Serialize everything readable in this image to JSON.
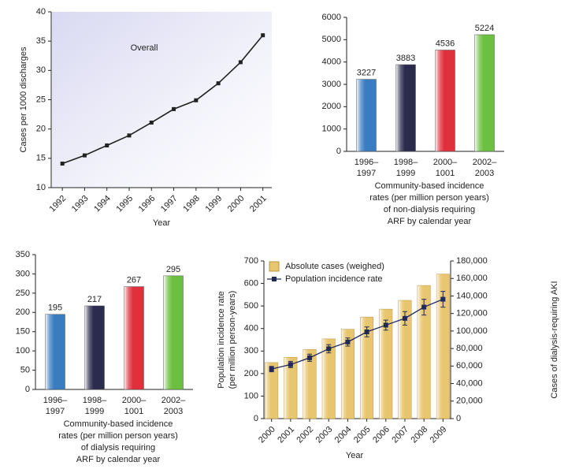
{
  "chart_data": [
    {
      "type": "line",
      "annotation": "Overall",
      "ylabel": "Cases per 1000 discharges",
      "xlabel": "Year",
      "x": [
        1992,
        1993,
        1994,
        1995,
        1996,
        1997,
        1998,
        1999,
        2000,
        2001
      ],
      "values": [
        14.1,
        15.5,
        17.2,
        18.9,
        21.1,
        23.4,
        24.9,
        27.8,
        31.4,
        36.0
      ],
      "color": "#222222",
      "xlim": [
        1991.5,
        2001.4
      ],
      "xticks": [
        1992,
        1993,
        1994,
        1995,
        1996,
        1997,
        1998,
        1999,
        2000,
        2001
      ],
      "ylim": [
        10,
        40
      ],
      "yticks": [
        10,
        15,
        20,
        25,
        30,
        35,
        40
      ]
    },
    {
      "type": "bar",
      "categories": [
        [
          "1996–",
          "1997"
        ],
        [
          "1998–",
          "1999"
        ],
        [
          "2000–",
          "1001"
        ],
        [
          "2002–",
          "2003"
        ]
      ],
      "values": [
        3227,
        3883,
        4536,
        5224
      ],
      "colors": [
        "#3a7cc0",
        "#2b2b4e",
        "#e0303c",
        "#6cc040"
      ],
      "caption": [
        "Community-based incidence",
        "rates (per million person years)",
        "of non-dialysis requiring",
        "ARF by calendar year"
      ],
      "ylim": [
        0,
        6000
      ],
      "yticks": [
        0,
        1000,
        2000,
        3000,
        4000,
        5000,
        6000
      ]
    },
    {
      "type": "bar",
      "categories": [
        [
          "1996–",
          "1997"
        ],
        [
          "1998–",
          "1999"
        ],
        [
          "2000–",
          "1001"
        ],
        [
          "2002–",
          "2003"
        ]
      ],
      "values": [
        195,
        217,
        267,
        295
      ],
      "colors": [
        "#3a7cc0",
        "#2b2b4e",
        "#e0303c",
        "#6cc040"
      ],
      "caption": [
        "Community-based incidence",
        "rates (per million person years)",
        "of dialysis requiring",
        "ARF by calendar year"
      ],
      "ylim": [
        0,
        350
      ],
      "yticks": [
        0,
        50,
        100,
        150,
        200,
        250,
        300,
        350
      ]
    },
    {
      "type": "combo",
      "xlabel": "Year",
      "ylabel": [
        "Population incidence rate",
        "(per million person-years)"
      ],
      "y2label": "Cases of dialysis-requiring AKI",
      "x": [
        2000,
        2001,
        2002,
        2003,
        2004,
        2005,
        2006,
        2007,
        2008,
        2009
      ],
      "series": [
        {
          "name": "Absolute cases (weighed)",
          "kind": "bar",
          "axis": "y2",
          "color": "#e8c670",
          "values": [
            64000,
            70000,
            79000,
            91000,
            102000,
            116000,
            125000,
            135000,
            152000,
            165000
          ]
        },
        {
          "name": "Population incidence rate",
          "kind": "line",
          "color": "#1f2a5a",
          "values": [
            220,
            240,
            270,
            310,
            340,
            385,
            415,
            445,
            495,
            530
          ],
          "errors": [
            12,
            14,
            16,
            18,
            18,
            22,
            22,
            30,
            35,
            35
          ]
        }
      ],
      "xlim": [
        1999.6,
        2009.4
      ],
      "xticks": [
        2000,
        2001,
        2002,
        2003,
        2004,
        2005,
        2006,
        2007,
        2008,
        2009
      ],
      "ylim": [
        0,
        700
      ],
      "yticks": [
        0,
        100,
        200,
        300,
        400,
        500,
        600,
        700
      ],
      "y2lim": [
        0,
        180000
      ],
      "y2ticks": [
        0,
        {
          "value": 20000,
          "label": "20,000"
        },
        {
          "value": 40000,
          "label": "40,000"
        },
        {
          "value": 60000,
          "label": "60,000"
        },
        {
          "value": 80000,
          "label": "80,000"
        },
        {
          "value": 100000,
          "label": "100,000"
        },
        {
          "value": 120000,
          "label": "120,000"
        },
        {
          "value": 140000,
          "label": "140,000"
        },
        {
          "value": 160000,
          "label": "160,000"
        },
        {
          "value": 180000,
          "label": "180,000"
        }
      ]
    }
  ]
}
